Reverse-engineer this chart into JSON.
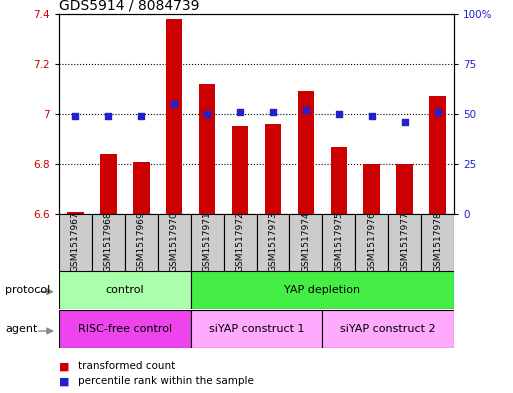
{
  "title": "GDS5914 / 8084739",
  "samples": [
    "GSM1517967",
    "GSM1517968",
    "GSM1517969",
    "GSM1517970",
    "GSM1517971",
    "GSM1517972",
    "GSM1517973",
    "GSM1517974",
    "GSM1517975",
    "GSM1517976",
    "GSM1517977",
    "GSM1517978"
  ],
  "bar_values": [
    6.61,
    6.84,
    6.81,
    7.38,
    7.12,
    6.95,
    6.96,
    7.09,
    6.87,
    6.8,
    6.8,
    7.07
  ],
  "dot_values": [
    49,
    49,
    49,
    55,
    50,
    51,
    51,
    52,
    50,
    49,
    46,
    51
  ],
  "ylim_left": [
    6.6,
    7.4
  ],
  "ylim_right": [
    0,
    100
  ],
  "yticks_left": [
    6.6,
    6.8,
    7.0,
    7.2,
    7.4
  ],
  "yticks_right": [
    0,
    25,
    50,
    75,
    100
  ],
  "ytick_labels_right": [
    "0",
    "25",
    "50",
    "75",
    "100%"
  ],
  "bar_color": "#cc0000",
  "dot_color": "#2222cc",
  "bar_bottom": 6.6,
  "bar_width": 0.5,
  "protocol_groups": [
    {
      "label": "control",
      "start": 0,
      "end": 4,
      "color": "#aaffaa"
    },
    {
      "label": "YAP depletion",
      "start": 4,
      "end": 12,
      "color": "#44ee44"
    }
  ],
  "agent_groups": [
    {
      "label": "RISC-free control",
      "start": 0,
      "end": 4,
      "color": "#ee44ee"
    },
    {
      "label": "siYAP construct 1",
      "start": 4,
      "end": 8,
      "color": "#ffaaff"
    },
    {
      "label": "siYAP construct 2",
      "start": 8,
      "end": 12,
      "color": "#ffaaff"
    }
  ],
  "legend_items": [
    {
      "label": "transformed count",
      "color": "#cc0000"
    },
    {
      "label": "percentile rank within the sample",
      "color": "#2222cc"
    }
  ],
  "background_color": "#ffffff",
  "title_fontsize": 10,
  "tick_fontsize": 7.5,
  "sample_label_fontsize": 6.5,
  "label_row_fontsize": 8,
  "legend_fontsize": 7.5
}
